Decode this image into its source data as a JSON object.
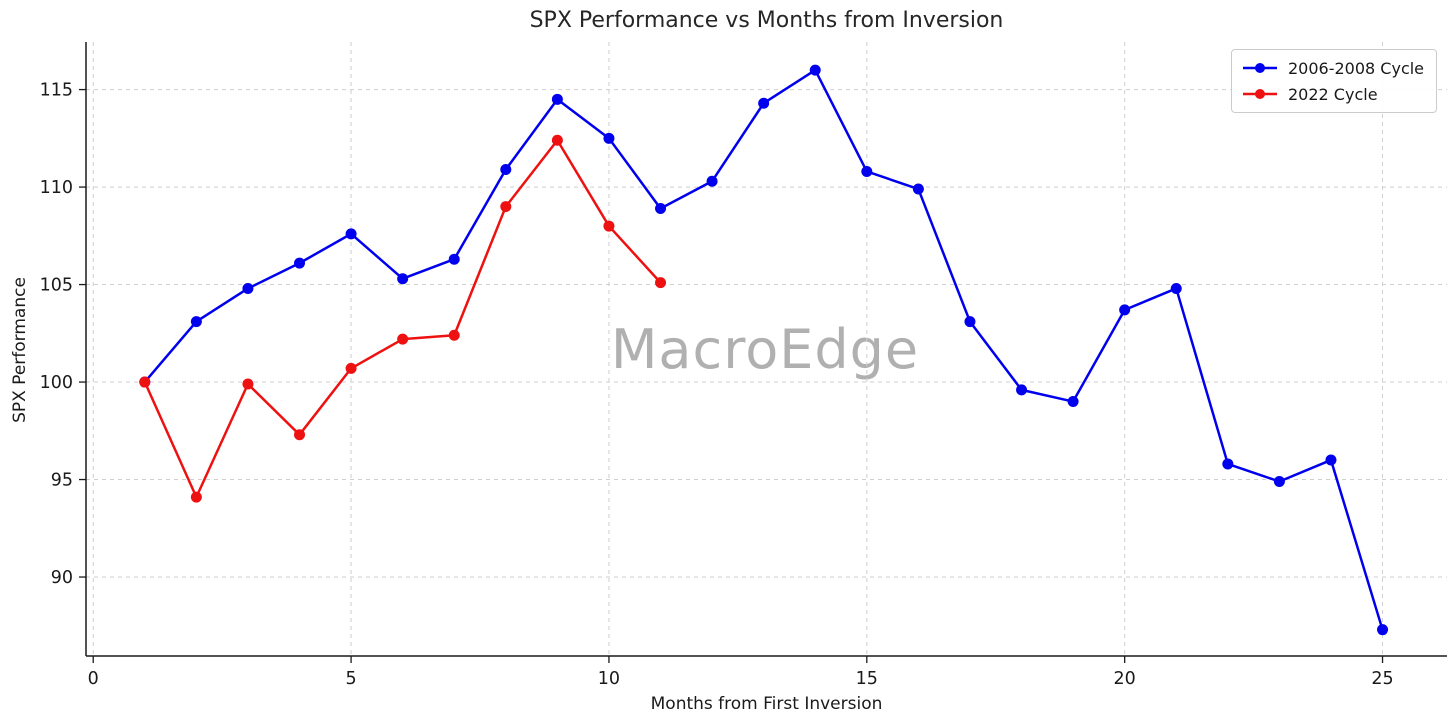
{
  "chart_data": {
    "type": "line",
    "title": "SPX Performance vs Months from Inversion",
    "xlabel": "Months from First Inversion",
    "ylabel": "SPX Performance",
    "watermark": "MacroEdge",
    "grid": true,
    "legend_position": "upper right",
    "xlim": [
      -0.14,
      26.25
    ],
    "ylim": [
      85.95,
      117.44
    ],
    "xticks": [
      0,
      5,
      10,
      15,
      20,
      25
    ],
    "yticks": [
      90,
      95,
      100,
      105,
      110,
      115
    ],
    "series": [
      {
        "name": "2006-2008 Cycle",
        "color": "#0000ee",
        "x": [
          1,
          2,
          3,
          4,
          5,
          6,
          7,
          8,
          9,
          10,
          11,
          12,
          13,
          14,
          15,
          16,
          17,
          18,
          19,
          20,
          21,
          22,
          23,
          24,
          25
        ],
        "values": [
          100.0,
          103.1,
          104.8,
          106.1,
          107.6,
          105.3,
          106.3,
          110.9,
          114.5,
          112.5,
          108.9,
          110.3,
          114.3,
          116.0,
          110.8,
          109.9,
          103.1,
          99.6,
          99.0,
          103.7,
          104.8,
          95.8,
          94.9,
          96.0,
          87.3
        ]
      },
      {
        "name": "2022 Cycle",
        "color": "#ee1111",
        "x": [
          1,
          2,
          3,
          4,
          5,
          6,
          7,
          8,
          9,
          10,
          11
        ],
        "values": [
          100.0,
          94.1,
          99.9,
          97.3,
          100.7,
          102.2,
          102.4,
          109.0,
          112.4,
          108.0,
          105.1
        ]
      }
    ],
    "colors": {
      "grid": "#cfcfcf",
      "spine": "#1a1a1a",
      "tick_label": "#1a1a1a",
      "watermark": "#b0b0b0"
    }
  }
}
